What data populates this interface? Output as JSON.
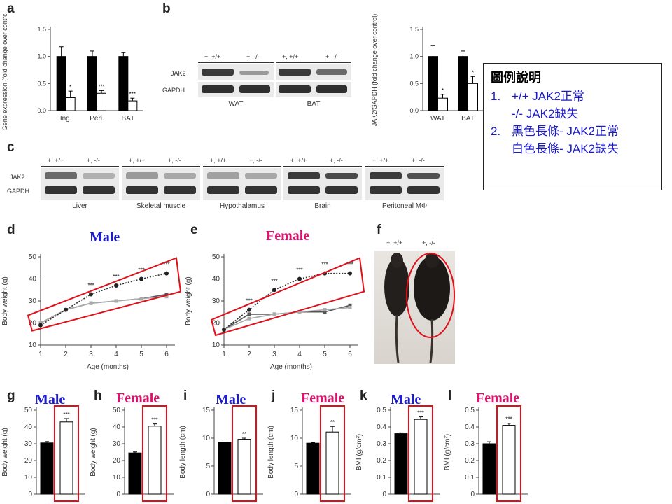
{
  "panels": {
    "a": "a",
    "b": "b",
    "c": "c",
    "d": "d",
    "e": "e",
    "f": "f",
    "g": "g",
    "h": "h",
    "i": "i",
    "j": "j",
    "k": "k",
    "l": "l"
  },
  "titles": {
    "d": "Male",
    "e": "Female",
    "g": "Male",
    "h": "Female",
    "i": "Male",
    "j": "Female",
    "k": "Male",
    "l": "Female"
  },
  "legend": {
    "title": "圖例說明",
    "items": [
      {
        "num": "1.",
        "text": "+/+ JAK2正常"
      },
      {
        "num": "",
        "text": "-/-   JAK2缺失"
      },
      {
        "num": "2.",
        "text": "黑色長條- JAK2正常"
      },
      {
        "num": "",
        "text": "白色長條- JAK2缺失"
      }
    ]
  },
  "blot_b": {
    "groups": [
      "WAT",
      "BAT"
    ],
    "genotypes": [
      "+, +/+",
      "+, -/-",
      "+, +/+",
      "+, -/-"
    ],
    "rows": [
      "JAK2",
      "GAPDH"
    ]
  },
  "blot_c": {
    "tissues": [
      "Liver",
      "Skeletal muscle",
      "Hypothalamus",
      "Brain",
      "Peritoneal MΦ"
    ],
    "genotypes": [
      "+, +/+",
      "+, -/-"
    ],
    "rows": [
      "JAK2",
      "GAPDH"
    ]
  },
  "photo_f": {
    "labels": [
      "+, +/+",
      "+, -/-"
    ]
  },
  "colors": {
    "highlight": "#e0101a",
    "wt_bar": "#000000",
    "ko_bar": "#ffffff",
    "male": "#1c1cd0",
    "female": "#e0106e"
  },
  "chart_data": [
    {
      "id": "a",
      "type": "bar",
      "ylabel": "Gene expression (fold change over control)",
      "ylim": [
        0,
        1.5
      ],
      "yticks": [
        "0.0",
        "0.5",
        "1.0",
        "1.5"
      ],
      "categories": [
        "Ing.",
        "Peri.",
        "BAT"
      ],
      "series": [
        {
          "values": [
            1.0,
            1.0,
            1.0
          ],
          "err": [
            0.18,
            0.1,
            0.07
          ]
        },
        {
          "values": [
            0.24,
            0.32,
            0.18
          ],
          "err": [
            0.12,
            0.05,
            0.05
          ]
        }
      ],
      "sig": [
        "*",
        "***",
        "***"
      ]
    },
    {
      "id": "b",
      "type": "bar",
      "ylabel": "JAK2/GAPDH (fold change over control)",
      "ylim": [
        0,
        1.5
      ],
      "yticks": [
        "0.0",
        "0.5",
        "1.0",
        "1.5"
      ],
      "categories": [
        "WAT",
        "BAT"
      ],
      "series": [
        {
          "values": [
            1.0,
            1.0
          ],
          "err": [
            0.2,
            0.1
          ]
        },
        {
          "values": [
            0.23,
            0.5
          ],
          "err": [
            0.07,
            0.13
          ]
        }
      ],
      "sig": [
        "*",
        "*"
      ]
    },
    {
      "id": "d",
      "type": "line",
      "xlabel": "Age (months)",
      "ylabel": "Body weight (g)",
      "xlim": [
        1,
        6
      ],
      "ylim": [
        10,
        50
      ],
      "x": [
        1,
        2,
        3,
        4,
        5,
        6
      ],
      "yticks": [
        "10",
        "20",
        "30",
        "40",
        "50"
      ],
      "series": [
        {
          "values": [
            20,
            26,
            29,
            30,
            31,
            33
          ],
          "style": "wt"
        },
        {
          "values": [
            20,
            26,
            29,
            30,
            31,
            32
          ],
          "style": "wt2"
        },
        {
          "values": [
            19,
            26,
            33,
            37,
            40,
            42.5
          ],
          "style": "ko"
        }
      ],
      "sig": [
        "",
        "",
        "***",
        "***",
        "***",
        "***"
      ]
    },
    {
      "id": "e",
      "type": "line",
      "xlabel": "Age (months)",
      "ylabel": "Body weight (g)",
      "xlim": [
        1,
        6
      ],
      "ylim": [
        10,
        50
      ],
      "x": [
        1,
        2,
        3,
        4,
        5,
        6
      ],
      "yticks": [
        "10",
        "20",
        "30",
        "40",
        "50"
      ],
      "series": [
        {
          "values": [
            17,
            24,
            24,
            25,
            25,
            28
          ],
          "style": "wt"
        },
        {
          "values": [
            17,
            22,
            24,
            25,
            26,
            27
          ],
          "style": "wt2"
        },
        {
          "values": [
            17,
            26,
            35,
            40,
            42.5,
            42.5
          ],
          "style": "ko"
        }
      ],
      "sig": [
        "",
        "***",
        "***",
        "***",
        "***",
        "***"
      ]
    },
    {
      "id": "g",
      "type": "bar",
      "ylabel": "Body weight (g)",
      "ylim": [
        0,
        50
      ],
      "yticks": [
        "0",
        "10",
        "20",
        "30",
        "40",
        "50"
      ],
      "values": [
        30.5,
        43
      ],
      "err": [
        0.8,
        2.0
      ],
      "sig": "***"
    },
    {
      "id": "h",
      "type": "bar",
      "ylabel": "Body weight (g)",
      "ylim": [
        0,
        50
      ],
      "yticks": [
        "0",
        "10",
        "20",
        "30",
        "40",
        "50"
      ],
      "values": [
        24.5,
        40.5
      ],
      "err": [
        0.6,
        1.3
      ],
      "sig": "***"
    },
    {
      "id": "i",
      "type": "bar",
      "ylabel": "Body length (cm)",
      "ylim": [
        0,
        15
      ],
      "yticks": [
        "0",
        "5",
        "10",
        "15"
      ],
      "values": [
        9.2,
        9.8
      ],
      "err": [
        0.1,
        0.2
      ],
      "sig": "**"
    },
    {
      "id": "j",
      "type": "bar",
      "ylabel": "Body length (cm)",
      "ylim": [
        0,
        15
      ],
      "yticks": [
        "0",
        "5",
        "10",
        "15"
      ],
      "values": [
        9.1,
        11.1
      ],
      "err": [
        0.1,
        1.0
      ],
      "sig": "**"
    },
    {
      "id": "k",
      "type": "bar",
      "ylabel": "BMI (g/cm²)",
      "ylim": [
        0,
        0.5
      ],
      "yticks": [
        "0",
        "0.1",
        "0.2",
        "0.3",
        "0.4",
        "0.5"
      ],
      "values": [
        0.36,
        0.445
      ],
      "err": [
        0.005,
        0.015
      ],
      "sig": "***"
    },
    {
      "id": "l",
      "type": "bar",
      "ylabel": "BMI (g/cm²)",
      "ylim": [
        0,
        0.5
      ],
      "yticks": [
        "0",
        "0.1",
        "0.2",
        "0.3",
        "0.4",
        "0.5"
      ],
      "values": [
        0.3,
        0.41
      ],
      "err": [
        0.012,
        0.012
      ],
      "sig": "***"
    }
  ]
}
